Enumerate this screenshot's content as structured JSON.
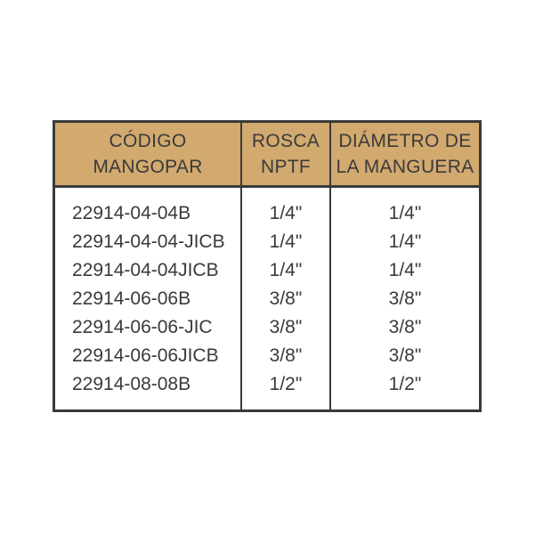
{
  "colors": {
    "header_bg": "#d2a96f",
    "border": "#3a3a3a",
    "text": "#3a3a3a",
    "page_bg": "#ffffff"
  },
  "table": {
    "columns": [
      {
        "id": "codigo",
        "header_lines": [
          "CÓDIGO",
          "MANGOPAR"
        ]
      },
      {
        "id": "rosca",
        "header_lines": [
          "ROSCA",
          "NPTF"
        ]
      },
      {
        "id": "diametro",
        "header_lines": [
          "DIÁMETRO DE",
          "LA MANGUERA"
        ]
      }
    ],
    "rows": [
      {
        "codigo": "22914-04-04B",
        "rosca": "1/4\"",
        "diametro": "1/4\""
      },
      {
        "codigo": "22914-04-04-JICB",
        "rosca": "1/4\"",
        "diametro": "1/4\""
      },
      {
        "codigo": "22914-04-04JICB",
        "rosca": "1/4\"",
        "diametro": "1/4\""
      },
      {
        "codigo": "22914-06-06B",
        "rosca": "3/8\"",
        "diametro": "3/8\""
      },
      {
        "codigo": "22914-06-06-JIC",
        "rosca": "3/8\"",
        "diametro": "3/8\""
      },
      {
        "codigo": "22914-06-06JICB",
        "rosca": "3/8\"",
        "diametro": "3/8\""
      },
      {
        "codigo": "22914-08-08B",
        "rosca": "1/2\"",
        "diametro": "1/2\""
      }
    ]
  }
}
